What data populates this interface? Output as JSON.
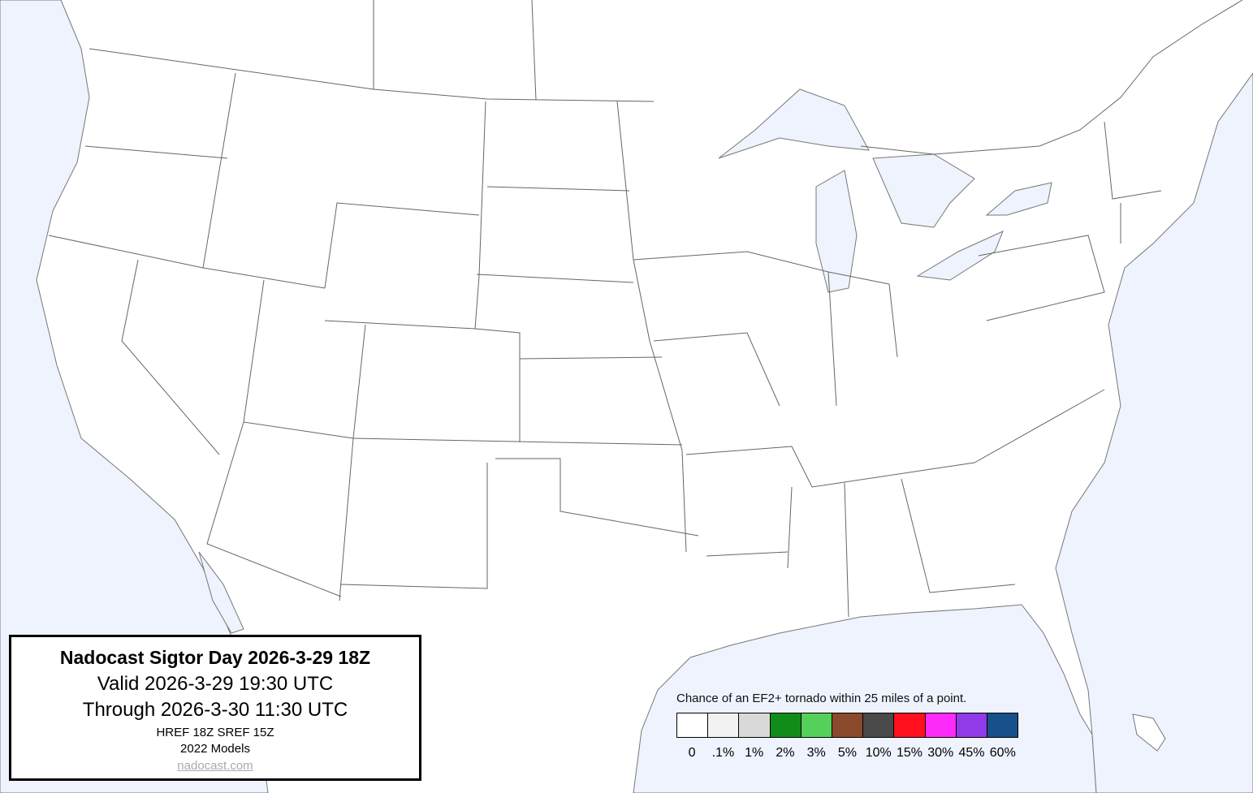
{
  "info": {
    "title": "Nadocast Sigtor Day 2026-3-29 18Z",
    "valid": "Valid 2026-3-29 19:30 UTC",
    "through": "Through 2026-3-30 11:30 UTC",
    "models_run": "HREF 18Z SREF 15Z",
    "model_version": "2022 Models",
    "site_link": "nadocast.com"
  },
  "legend": {
    "title": "Chance of an EF2+ tornado within 25 miles of a point.",
    "bins": [
      {
        "label": "0",
        "color": "#ffffff"
      },
      {
        "label": ".1%",
        "color": "#f2f2f2"
      },
      {
        "label": "1%",
        "color": "#d9d9d9"
      },
      {
        "label": "2%",
        "color": "#118c18"
      },
      {
        "label": "3%",
        "color": "#55d05a"
      },
      {
        "label": "5%",
        "color": "#8b4a2b"
      },
      {
        "label": "10%",
        "color": "#4a4a4a"
      },
      {
        "label": "15%",
        "color": "#ff101c"
      },
      {
        "label": "30%",
        "color": "#fc2bf9"
      },
      {
        "label": "45%",
        "color": "#913ae8"
      },
      {
        "label": "60%",
        "color": "#17508a"
      }
    ]
  },
  "map": {
    "water_color": "#eef3fd",
    "land_color": "#ffffff",
    "border_color": "#666666"
  }
}
